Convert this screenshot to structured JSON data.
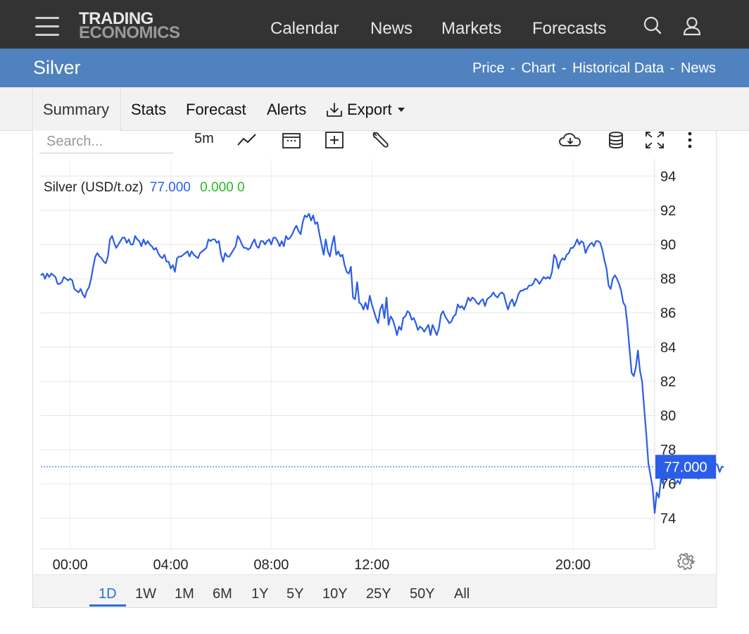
{
  "header": {
    "logo_line1": "TRADING",
    "logo_line2": "ECONOMICS",
    "nav": [
      "Calendar",
      "News",
      "Markets",
      "Forecasts"
    ]
  },
  "titlebar": {
    "title": "Silver",
    "links": [
      "Price",
      "Chart",
      "Historical Data",
      "News"
    ],
    "separator": "-"
  },
  "tabs": [
    "Summary",
    "Stats",
    "Forecast",
    "Alerts",
    "Export"
  ],
  "active_tab": "Summary",
  "toolbar": {
    "search_placeholder": "Search...",
    "interval": "5m"
  },
  "legend": {
    "name": "Silver (USD/t.oz)",
    "value": "77.000",
    "change": "0.000 0"
  },
  "price_label": "77.000",
  "periods": [
    "1D",
    "1W",
    "1M",
    "6M",
    "1Y",
    "5Y",
    "10Y",
    "25Y",
    "50Y",
    "All"
  ],
  "active_period": "1D",
  "colors": {
    "topbar": "#333333",
    "titlebar": "#4f82bf",
    "line": "#2a5de8",
    "change_positive": "#22bb22",
    "accent": "#2a6ed8"
  },
  "chart_data": {
    "type": "line",
    "series": [
      {
        "name": "Silver (USD/t.oz)",
        "x_start": "22:50",
        "x_step_minutes": 5,
        "values": [
          88.2,
          88.3,
          88.0,
          88.3,
          88.1,
          88.3,
          88.2,
          88.1,
          87.7,
          87.7,
          87.8,
          88.1,
          88.0,
          87.9,
          88.0,
          87.9,
          87.4,
          87.3,
          87.2,
          87.4,
          87.1,
          86.9,
          87.3,
          87.5,
          88.0,
          88.7,
          89.3,
          89.5,
          89.3,
          89.2,
          89.0,
          88.9,
          89.3,
          90.3,
          90.5,
          90.1,
          89.8,
          90.0,
          90.2,
          90.4,
          90.4,
          90.1,
          90.3,
          90.0,
          90.0,
          90.5,
          90.3,
          90.2,
          89.9,
          90.3,
          90.0,
          90.2,
          90.0,
          89.9,
          89.7,
          89.8,
          89.5,
          89.3,
          89.2,
          89.4,
          89.0,
          89.0,
          88.6,
          88.8,
          88.4,
          89.2,
          89.3,
          89.3,
          89.4,
          89.5,
          89.6,
          89.3,
          89.6,
          89.4,
          89.3,
          89.2,
          89.5,
          89.6,
          89.7,
          89.8,
          90.3,
          90.2,
          90.3,
          90.3,
          90.1,
          90.2,
          89.4,
          89.0,
          89.5,
          89.3,
          89.3,
          89.5,
          89.7,
          89.9,
          90.5,
          90.3,
          90.0,
          89.8,
          89.8,
          89.7,
          89.8,
          90.1,
          90.3,
          89.9,
          89.8,
          90.2,
          90.2,
          90.0,
          90.2,
          90.3,
          90.0,
          90.4,
          90.4,
          90.2,
          89.9,
          90.2,
          89.9,
          90.5,
          90.3,
          90.4,
          90.6,
          90.9,
          91.1,
          90.8,
          90.6,
          91.3,
          91.7,
          91.6,
          91.8,
          91.4,
          91.7,
          91.2,
          91.3,
          90.6,
          90.0,
          89.4,
          90.3,
          89.6,
          89.3,
          90.0,
          90.5,
          89.4,
          89.6,
          89.3,
          89.4,
          88.8,
          88.4,
          88.3,
          88.7,
          86.9,
          86.8,
          87.8,
          86.6,
          86.5,
          86.2,
          86.6,
          86.2,
          87.0,
          86.5,
          86.1,
          85.7,
          85.4,
          86.2,
          86.5,
          85.7,
          86.9,
          85.3,
          85.8,
          85.6,
          85.2,
          84.7,
          85.2,
          85.0,
          85.7,
          85.8,
          86.1,
          86.0,
          85.6,
          85.7,
          85.4,
          85.0,
          85.2,
          85.1,
          84.9,
          85.1,
          85.3,
          84.7,
          85.3,
          85.0,
          84.7,
          85.1,
          85.9,
          86.1,
          85.8,
          85.6,
          85.4,
          85.5,
          85.8,
          85.9,
          86.5,
          86.3,
          86.4,
          86.2,
          86.5,
          86.9,
          86.7,
          86.9,
          86.8,
          86.6,
          86.5,
          86.7,
          86.8,
          86.4,
          86.8,
          86.9,
          87.0,
          87.2,
          87.0,
          86.9,
          87.1,
          87.2,
          87.1,
          86.6,
          86.2,
          86.6,
          86.8,
          86.4,
          86.7,
          87.1,
          87.3,
          87.3,
          87.4,
          87.4,
          87.6,
          87.6,
          87.7,
          88.0,
          87.9,
          87.7,
          87.9,
          88.1,
          88.0,
          88.1,
          88.0,
          88.4,
          89.4,
          89.2,
          88.6,
          89.0,
          89.2,
          89.1,
          89.4,
          89.5,
          89.8,
          89.8,
          90.0,
          90.3,
          90.0,
          90.2,
          90.1,
          89.5,
          89.8,
          90.0,
          90.1,
          89.9,
          90.2,
          90.2,
          90.1,
          89.7,
          89.1,
          88.6,
          87.6,
          87.4,
          88.0,
          88.2,
          88.0,
          87.7,
          87.3,
          86.6,
          86.4,
          85.3,
          83.9,
          82.5,
          82.3,
          82.8,
          83.8,
          82.6,
          82.0,
          80.4,
          78.9,
          77.2,
          76.5,
          75.8,
          74.3,
          75.5,
          75.2,
          76.3,
          76.0,
          76.7,
          77.2,
          77.6,
          77.2,
          76.4,
          76.0,
          76.2,
          76.0,
          76.4,
          76.6,
          76.8,
          76.9,
          77.0,
          77.0,
          76.7,
          76.6,
          76.3,
          76.8,
          76.9,
          77.0,
          76.7,
          76.5,
          77.3,
          77.2,
          77.2,
          77.1,
          76.7,
          77.0,
          77.0
        ]
      }
    ],
    "x_tick_labels": [
      "00:00",
      "04:00",
      "08:00",
      "12:00",
      "20:00"
    ],
    "y_ticks": [
      74,
      76,
      78,
      80,
      82,
      84,
      86,
      88,
      90,
      92,
      94
    ],
    "ylim": [
      72.2,
      95.0
    ],
    "x_range": [
      "22:50",
      "23:15"
    ],
    "last_value": 77.0,
    "grid": true,
    "y_axis_side": "right"
  }
}
